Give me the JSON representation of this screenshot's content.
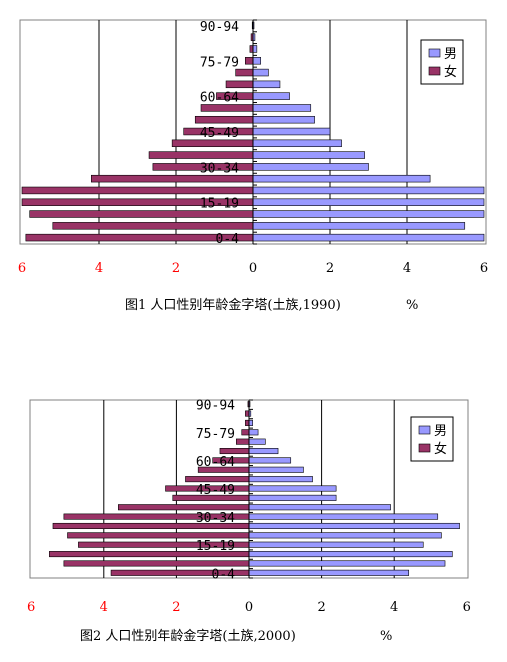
{
  "charts": [
    {
      "caption": "图1 人口性别年龄金字塔(土族,1990)",
      "unit": "%",
      "chart_data": {
        "type": "bar",
        "orientation": "horizontal-population-pyramid",
        "categories": [
          "0-4",
          "5-9",
          "10-14",
          "15-19",
          "20-24",
          "25-29",
          "30-34",
          "35-39",
          "40-44",
          "45-49",
          "50-54",
          "55-59",
          "60-64",
          "65-69",
          "70-74",
          "75-79",
          "80-84",
          "85-89",
          "90-94"
        ],
        "shown_category_labels": [
          "0-4",
          "15-19",
          "30-34",
          "45-49",
          "60-64",
          "75-79",
          "90-94"
        ],
        "series": [
          {
            "name": "男",
            "color": "#9999ff",
            "values": [
              6.0,
              5.5,
              6.0,
              6.0,
              6.0,
              4.6,
              3.0,
              2.9,
              2.3,
              2.0,
              1.6,
              1.5,
              0.95,
              0.7,
              0.4,
              0.2,
              0.1,
              0.05,
              0.02
            ]
          },
          {
            "name": "女",
            "color": "#993366",
            "values": [
              5.9,
              5.2,
              5.8,
              6.0,
              6.0,
              4.2,
              2.6,
              2.7,
              2.1,
              1.8,
              1.5,
              1.35,
              0.95,
              0.7,
              0.45,
              0.2,
              0.08,
              0.05,
              0.02
            ]
          }
        ],
        "x_ticks": [
          "6",
          "4",
          "2",
          "0",
          "2",
          "4",
          "6"
        ],
        "xlim": [
          -6,
          6
        ],
        "grid": true,
        "legend": "top-right"
      }
    },
    {
      "caption": "图2  人口性别年龄金字塔(土族,2000)",
      "unit": "%",
      "chart_data": {
        "type": "bar",
        "orientation": "horizontal-population-pyramid",
        "categories": [
          "0-4",
          "5-9",
          "10-14",
          "15-19",
          "20-24",
          "25-29",
          "30-34",
          "35-39",
          "40-44",
          "45-49",
          "50-54",
          "55-59",
          "60-64",
          "65-69",
          "70-74",
          "75-79",
          "80-84",
          "85-89",
          "90-94"
        ],
        "shown_category_labels": [
          "0-4",
          "15-19",
          "30-34",
          "45-49",
          "60-64",
          "75-79",
          "90-94"
        ],
        "series": [
          {
            "name": "男",
            "color": "#9999ff",
            "values": [
              4.4,
              5.4,
              5.6,
              4.8,
              5.3,
              5.8,
              5.2,
              3.9,
              2.4,
              2.4,
              1.75,
              1.5,
              1.15,
              0.8,
              0.45,
              0.25,
              0.1,
              0.05,
              0.02
            ]
          },
          {
            "name": "女",
            "color": "#993366",
            "values": [
              3.8,
              5.1,
              5.5,
              4.7,
              5.0,
              5.4,
              5.1,
              3.6,
              2.1,
              2.3,
              1.75,
              1.4,
              1.0,
              0.8,
              0.35,
              0.2,
              0.1,
              0.1,
              0.03
            ]
          }
        ],
        "x_ticks": [
          "6",
          "4",
          "2",
          "0",
          "2",
          "4",
          "6"
        ],
        "xlim": [
          -6,
          6
        ],
        "grid": true,
        "legend": "top-right"
      }
    }
  ],
  "colors": {
    "tick_red": "#ff0000",
    "tick_black": "#000000",
    "grid": "#000000",
    "male": "#9999ff",
    "female": "#993366"
  }
}
